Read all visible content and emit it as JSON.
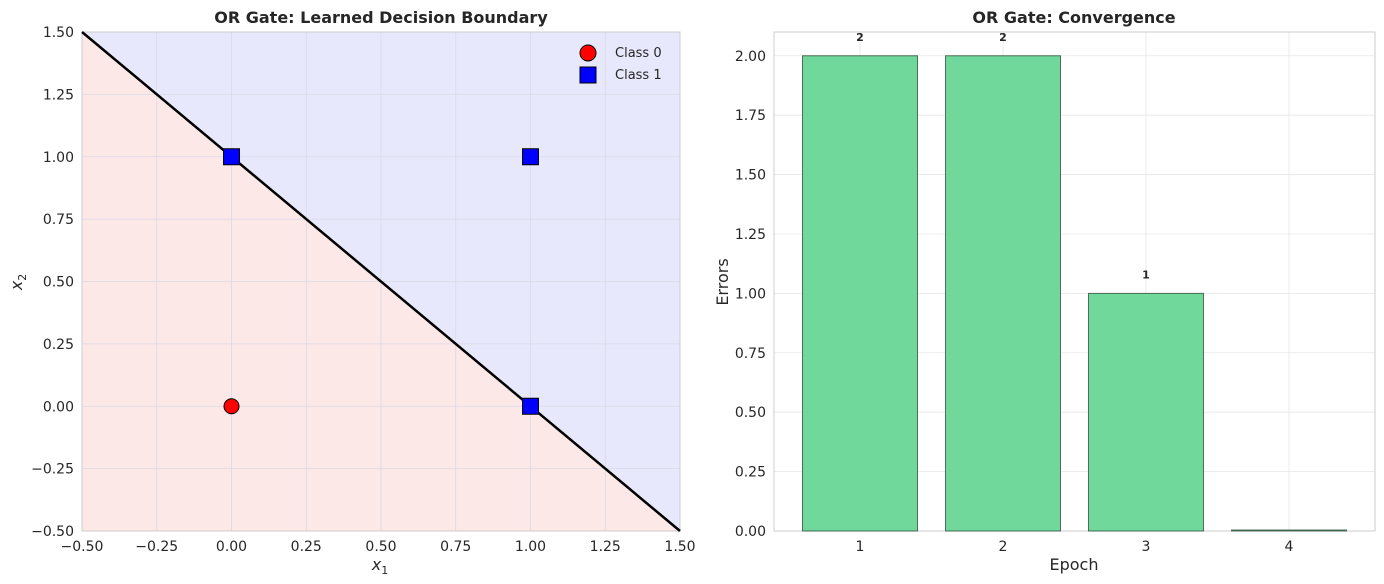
{
  "chart_data": [
    {
      "type": "scatter",
      "title": "OR Gate: Learned Decision Boundary",
      "xlabel": "x",
      "xlabel_sub": "1",
      "ylabel": "x",
      "ylabel_sub": "2",
      "xlim": [
        -0.5,
        1.5
      ],
      "ylim": [
        -0.5,
        1.5
      ],
      "xticks": [
        "−0.50",
        "−0.25",
        "0.00",
        "0.25",
        "0.50",
        "0.75",
        "1.00",
        "1.25",
        "1.50"
      ],
      "yticks": [
        "−0.50",
        "−0.25",
        "0.00",
        "0.25",
        "0.50",
        "0.75",
        "1.00",
        "1.25",
        "1.50"
      ],
      "grid": true,
      "legend_position": "top-right",
      "series": [
        {
          "name": "Class 0",
          "marker": "circle",
          "color": "#ff0000",
          "points": [
            [
              0,
              0
            ]
          ]
        },
        {
          "name": "Class 1",
          "marker": "square",
          "color": "#0000ff",
          "points": [
            [
              0,
              1
            ],
            [
              1,
              0
            ],
            [
              1,
              1
            ]
          ]
        }
      ],
      "decision_boundary": {
        "from": [
          -0.5,
          1.5
        ],
        "to": [
          1.5,
          -0.5
        ],
        "color": "#000000"
      },
      "regions": {
        "class0_color": "#fde8e8",
        "class1_color": "#e8e8fc"
      }
    },
    {
      "type": "bar",
      "title": "OR Gate: Convergence",
      "xlabel": "Epoch",
      "ylabel": "Errors",
      "categories": [
        "1",
        "2",
        "3",
        "4"
      ],
      "values": [
        2,
        2,
        1,
        0
      ],
      "data_labels": [
        "2",
        "2",
        "1",
        ""
      ],
      "ylim": [
        0,
        2.1
      ],
      "yticks": [
        "0.00",
        "0.25",
        "0.50",
        "0.75",
        "1.00",
        "1.25",
        "1.50",
        "1.75",
        "2.00"
      ],
      "grid": true,
      "bar_color": "#6fd89a"
    }
  ]
}
